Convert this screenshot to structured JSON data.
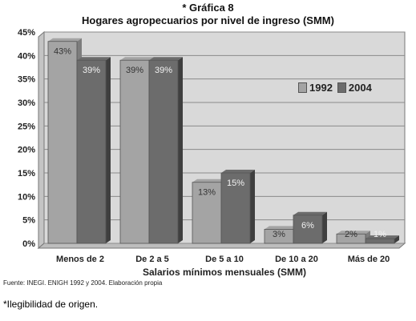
{
  "header": {
    "line1": "* Gráfica 8",
    "line2": "Hogares agropecuarios por nivel de ingreso (SMM)"
  },
  "source": "Fuente: INEGI. ENIGH 1992 y 2004. Elaboración propia",
  "footnote": "*Ilegibilidad de origen.",
  "colors": {
    "series_1992": "#a4a4a4",
    "series_2004": "#6c6c6c",
    "plot_background": "#d9d9d9",
    "wall": "#c4c4c4"
  },
  "chart_data": {
    "type": "bar",
    "title": "Hogares agropecuarios por nivel de ingreso (SMM)",
    "xlabel": "Salarios mínimos mensuales (SMM)",
    "ylabel": "",
    "ylim": [
      0,
      45
    ],
    "yticks": [
      "0%",
      "5%",
      "10%",
      "15%",
      "20%",
      "25%",
      "30%",
      "35%",
      "40%",
      "45%"
    ],
    "categories": [
      "Menos de 2",
      "De 2 a 5",
      "De 5 a 10",
      "De 10 a 20",
      "Más de 20"
    ],
    "series": [
      {
        "name": "1992",
        "values": [
          43,
          39,
          13,
          3,
          2
        ],
        "labels": [
          "43%",
          "39%",
          "13%",
          "3%",
          "2%"
        ]
      },
      {
        "name": "2004",
        "values": [
          39,
          39,
          15,
          6,
          1
        ],
        "labels": [
          "39%",
          "39%",
          "15%",
          "6%",
          "1%"
        ]
      }
    ],
    "grid": true,
    "legend_position": "top-right"
  }
}
